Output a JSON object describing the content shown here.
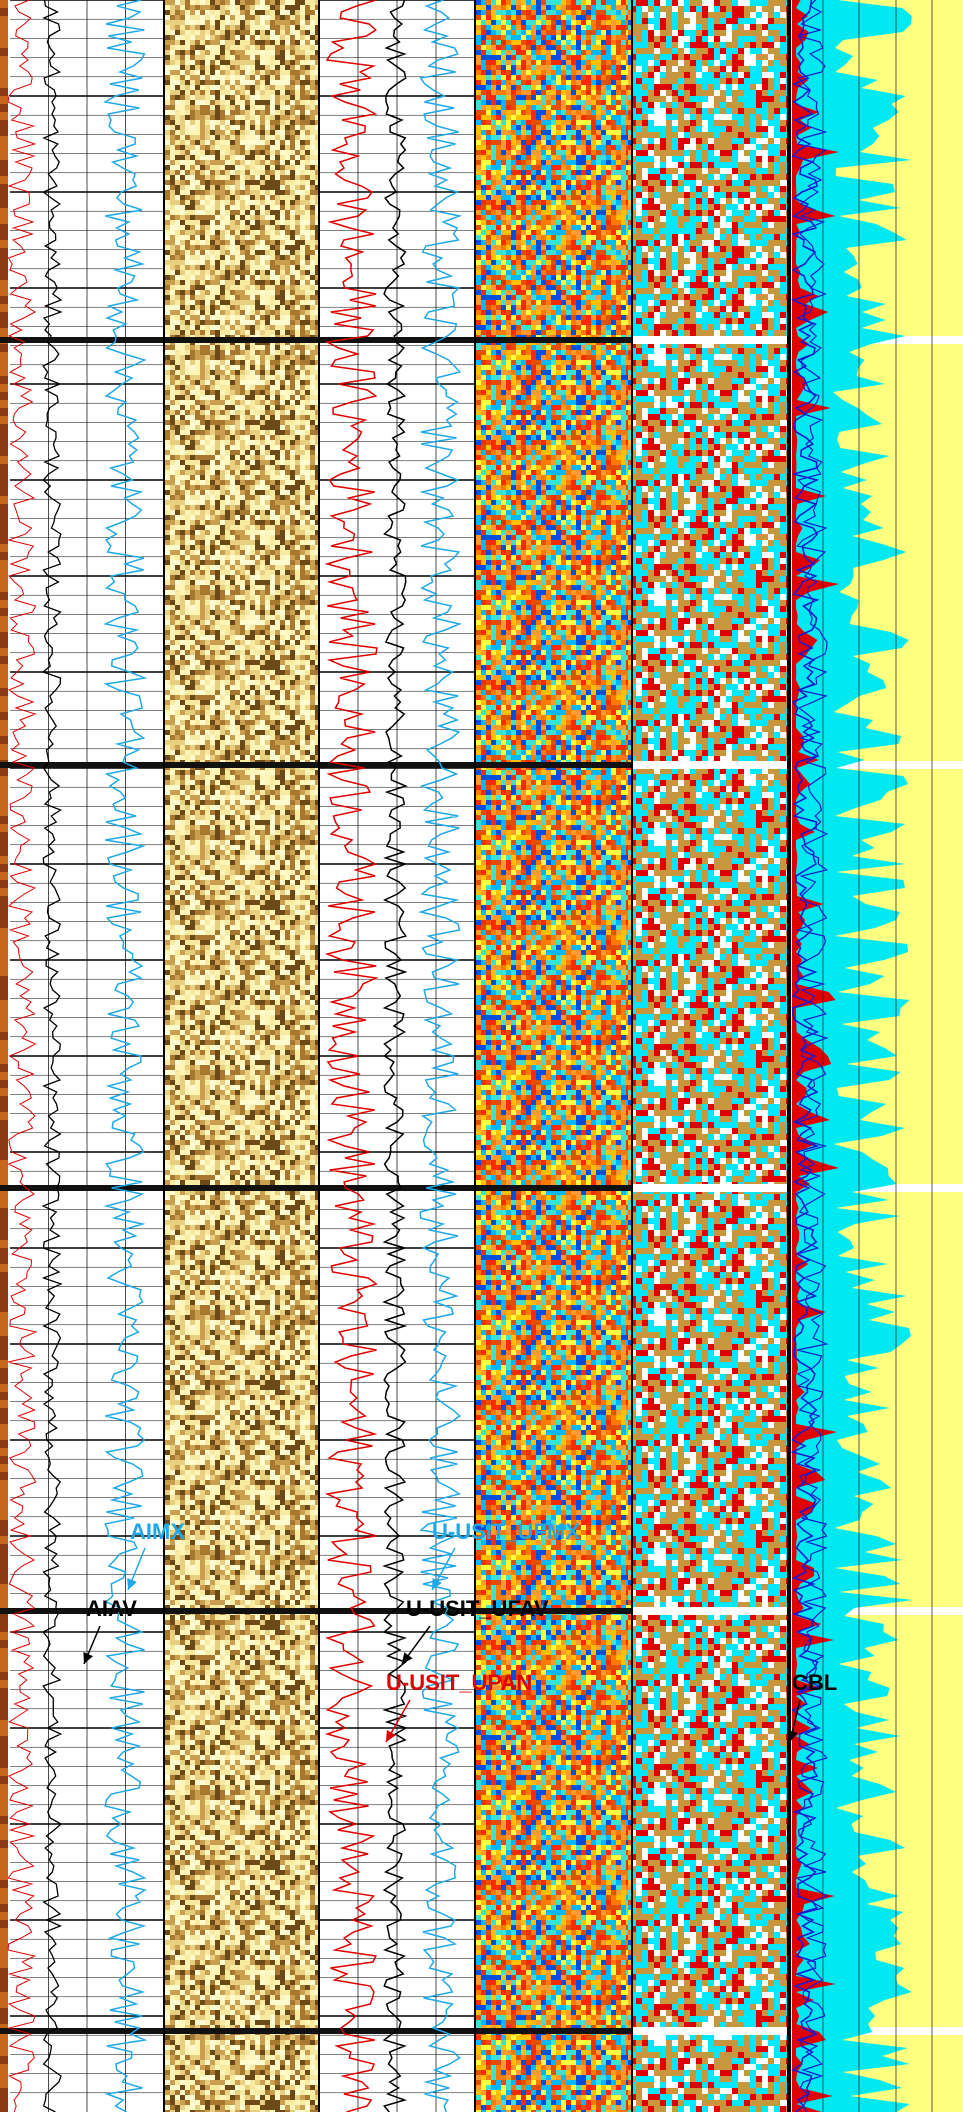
{
  "curve_labels": [
    {
      "label": "AIMX",
      "color": "#1ea8e8"
    },
    {
      "label": "AIAV",
      "color": "#000000"
    },
    {
      "label": "U-USIT_UFMX",
      "color": "#1ea8e8"
    },
    {
      "label": "U-USIT_UFAV",
      "color": "#000000"
    },
    {
      "label": "U-USIT_UPAN",
      "color": "#e00000"
    },
    {
      "label": "CBL",
      "color": "#000000"
    }
  ]
}
